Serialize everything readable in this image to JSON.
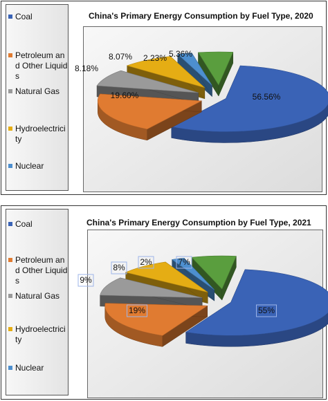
{
  "chart_data": [
    {
      "type": "pie",
      "title": "China's Primary Energy Consumption by Fuel Type, 2020",
      "categories": [
        "Coal",
        "Petroleum and Other Liquids",
        "Natural Gas",
        "Hydroelectricity",
        "Nuclear",
        ""
      ],
      "values": [
        56.56,
        19.6,
        8.18,
        8.07,
        2.23,
        5.36
      ],
      "value_labels": [
        "56.56%",
        "19.60%",
        "8.18%",
        "8.07%",
        "2.23%",
        "5.36%"
      ],
      "legend_labels": [
        "Coal",
        "Petroleum and Other Liquids",
        "Natural Gas",
        "Hydroelectricity",
        "Nuclear"
      ],
      "colors": [
        "#3a63b6",
        "#e07b31",
        "#9a9a9a",
        "#e5ad14",
        "#4d8fcf",
        "#5a9e3e"
      ],
      "legend_placement": "left",
      "style": "3d-exploded"
    },
    {
      "type": "pie",
      "title": "China's Primary Energy Consumption by Fuel Type, 2021",
      "categories": [
        "Coal",
        "Petroleum and Other Liquids",
        "Natural Gas",
        "Hydroelectricity",
        "Nuclear",
        ""
      ],
      "values": [
        55,
        19,
        9,
        8,
        2,
        7
      ],
      "value_labels": [
        "55%",
        "19%",
        "9%",
        "8%",
        "2%",
        "7%"
      ],
      "legend_labels": [
        "Coal",
        "Petroleum and Other Liquids",
        "Natural Gas",
        "Hydroelectricity",
        "Nuclear"
      ],
      "colors": [
        "#3a63b6",
        "#e07b31",
        "#9a9a9a",
        "#e5ad14",
        "#4d8fcf",
        "#5a9e3e"
      ],
      "legend_placement": "left",
      "style": "3d-exploded",
      "labels_boxed": true
    }
  ]
}
